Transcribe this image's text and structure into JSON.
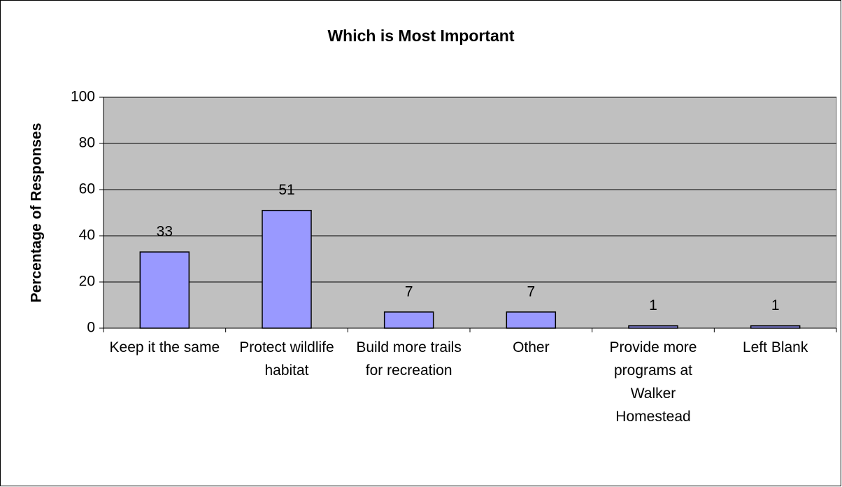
{
  "chart_data": {
    "type": "bar",
    "title": "Which is Most Important",
    "y_label": "Percentage of Responses",
    "categories": [
      "Keep it the same",
      "Protect wildlife habitat",
      "Build more trails for recreation",
      "Other",
      "Provide more programs at Walker Homestead",
      "Left Blank"
    ],
    "values": [
      33,
      51,
      7,
      7,
      1,
      1
    ],
    "color": "#9999ff",
    "ylim": [
      0,
      100
    ],
    "yticks": [
      0,
      20,
      40,
      60,
      80,
      100
    ],
    "grid": true
  }
}
